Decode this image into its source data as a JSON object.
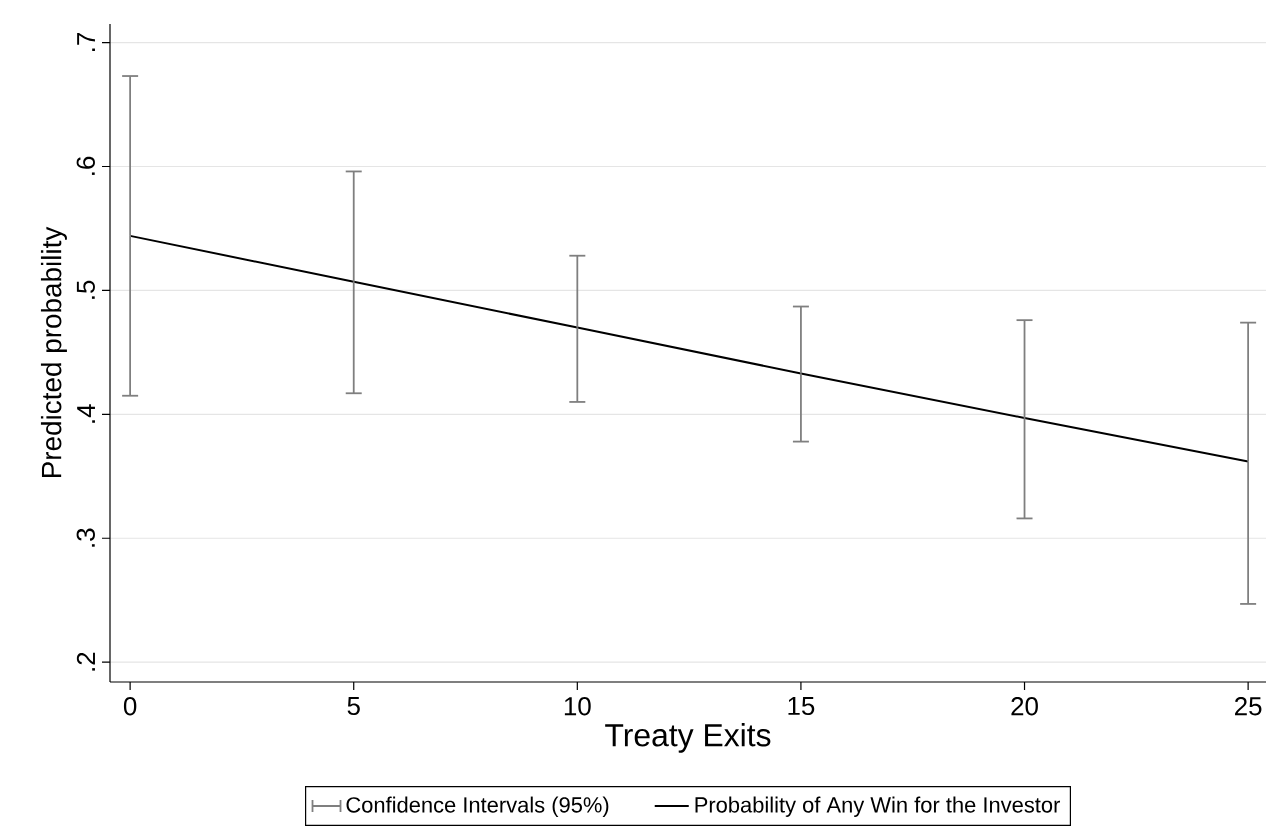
{
  "chart_data": {
    "type": "line",
    "xlabel": "Treaty Exits",
    "ylabel": "Predicted probability",
    "x": [
      0,
      5,
      10,
      15,
      20,
      25
    ],
    "series": [
      {
        "name": "Probability of Any Win for the Investor",
        "color": "#000000",
        "line_style": "solid",
        "values": [
          0.544,
          0.507,
          0.47,
          0.433,
          0.397,
          0.362
        ],
        "errors": [
          [
            0.415,
            0.673
          ],
          [
            0.417,
            0.596
          ],
          [
            0.41,
            0.528
          ],
          [
            0.378,
            0.487
          ],
          [
            0.316,
            0.476
          ],
          [
            0.247,
            0.474
          ]
        ]
      }
    ],
    "annotations": [
      "Confidence Intervals (95%)"
    ],
    "xlim": [
      -0.45,
      25.4
    ],
    "ylim": [
      0.184,
      0.715
    ],
    "xticks": [
      0,
      5,
      10,
      15,
      20,
      25
    ],
    "yticks": [
      {
        "value": 0.2,
        "label": ".2"
      },
      {
        "value": 0.3,
        "label": ".3"
      },
      {
        "value": 0.4,
        "label": ".4"
      },
      {
        "value": 0.5,
        "label": ".5"
      },
      {
        "value": 0.6,
        "label": ".6"
      },
      {
        "value": 0.7,
        "label": ".7"
      }
    ],
    "grid": "y",
    "legend": "bottom"
  }
}
